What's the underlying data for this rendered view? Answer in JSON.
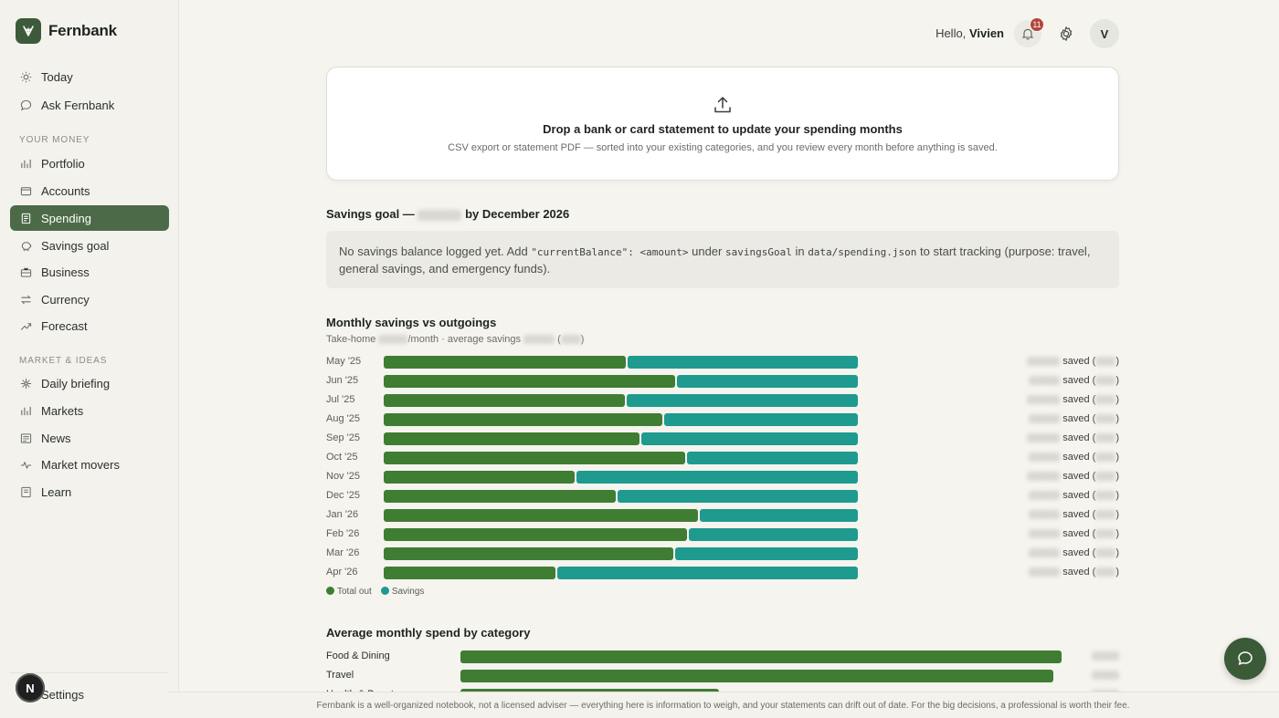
{
  "app": {
    "name": "Fernbank"
  },
  "sidebar": {
    "top_items": [
      {
        "label": "Today",
        "icon": "sun-icon"
      },
      {
        "label": "Ask Fernbank",
        "icon": "chat-icon"
      }
    ],
    "section_money": "YOUR MONEY",
    "money_items": [
      {
        "label": "Portfolio",
        "icon": "bar-chart-icon"
      },
      {
        "label": "Accounts",
        "icon": "wallet-icon"
      },
      {
        "label": "Spending",
        "icon": "receipt-icon",
        "active": true
      },
      {
        "label": "Savings goal",
        "icon": "piggy-bank-icon"
      },
      {
        "label": "Business",
        "icon": "briefcase-icon"
      },
      {
        "label": "Currency",
        "icon": "swap-icon"
      },
      {
        "label": "Forecast",
        "icon": "trend-icon"
      }
    ],
    "section_market": "MARKET & IDEAS",
    "market_items": [
      {
        "label": "Daily briefing",
        "icon": "sparkle-icon"
      },
      {
        "label": "Markets",
        "icon": "bar-chart-icon"
      },
      {
        "label": "News",
        "icon": "newspaper-icon"
      },
      {
        "label": "Market movers",
        "icon": "pulse-icon"
      },
      {
        "label": "Learn",
        "icon": "book-icon"
      }
    ],
    "settings_label": "Settings",
    "user_initial": "N"
  },
  "header": {
    "greeting": "Hello,",
    "user_name": "Vivien",
    "notification_count": "11",
    "avatar_initial": "V"
  },
  "upload": {
    "title": "Drop a bank or card statement to update your spending months",
    "subtitle": "CSV export or statement PDF — sorted into your existing categories, and you review every month before anything is saved."
  },
  "goal": {
    "title_prefix": "Savings goal —",
    "title_suffix": "by December 2026",
    "note_1": "No savings balance logged yet. Add ",
    "note_code_1": "\"currentBalance\": <amount>",
    "note_2": " under ",
    "note_code_2": "savingsGoal",
    "note_3": " in ",
    "note_code_3": "data/spending.json",
    "note_4": " to start tracking (purpose: travel, general savings, and emergency funds)."
  },
  "monthly_chart": {
    "title": "Monthly savings vs outgoings",
    "sub_prefix": "Take-home",
    "sub_middle": "/month · average savings",
    "saved_label": "saved",
    "legend_out": "Total out",
    "legend_savings": "Savings",
    "colors": {
      "out": "#3f7d33",
      "savings": "#1e9a8e"
    }
  },
  "chart_data": {
    "type": "bar",
    "categories": [
      "May '25",
      "Jun '25",
      "Jul '25",
      "Aug '25",
      "Sep '25",
      "Oct '25",
      "Nov '25",
      "Dec '25",
      "Jan '26",
      "Feb '26",
      "Mar '26",
      "Apr '26"
    ],
    "series": [
      {
        "name": "Total out",
        "values": [
          0.51,
          0.615,
          0.508,
          0.587,
          0.54,
          0.635,
          0.403,
          0.49,
          0.662,
          0.639,
          0.61,
          0.362
        ]
      },
      {
        "name": "Savings",
        "values": [
          0.49,
          0.385,
          0.492,
          0.413,
          0.46,
          0.365,
          0.597,
          0.51,
          0.338,
          0.361,
          0.39,
          0.638
        ]
      }
    ]
  },
  "category_chart": {
    "title": "Average monthly spend by category",
    "items": [
      {
        "label": "Food & Dining",
        "share": 1.0
      },
      {
        "label": "Travel",
        "share": 0.986
      },
      {
        "label": "Health & Beauty",
        "share": 0.43
      }
    ]
  },
  "footer": {
    "text": "Fernbank is a well-organized notebook, not a licensed adviser — everything here is information to weigh, and your statements can drift out of date. For the big decisions, a professional is worth their fee."
  }
}
